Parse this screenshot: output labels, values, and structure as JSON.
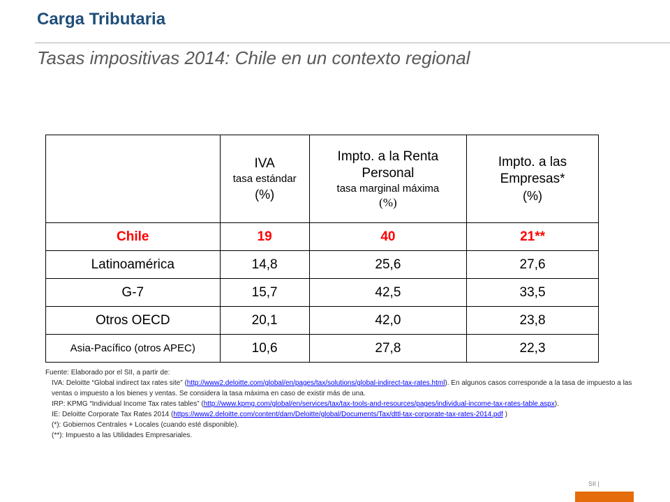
{
  "header": {
    "title": "Carga Tributaria",
    "subtitle": "Tasas impositivas 2014: Chile en un contexto regional"
  },
  "table": {
    "columns": [
      {
        "main": "IVA",
        "sub": "tasa estándar",
        "unit": "(%)"
      },
      {
        "main": "Impto. a la Renta Personal",
        "sub": "tasa marginal máxima",
        "unit": "(%)"
      },
      {
        "main": "Impto. a las Empresas*",
        "unit": "(%)"
      }
    ],
    "rows": [
      {
        "name": "Chile",
        "iva": "19",
        "renta": "40",
        "empresas": "21**"
      },
      {
        "name": "Latinoamérica",
        "iva": "14,8",
        "renta": "25,6",
        "empresas": "27,6"
      },
      {
        "name": "G-7",
        "iva": "15,7",
        "renta": "42,5",
        "empresas": "33,5"
      },
      {
        "name": "Otros OECD",
        "iva": "20,1",
        "renta": "42,0",
        "empresas": "23,8"
      },
      {
        "name": "Asia-Pacífico (otros APEC)",
        "iva": "10,6",
        "renta": "27,8",
        "empresas": "22,3"
      }
    ]
  },
  "notes": {
    "source": "Fuente: Elaborado por el SII, a partir de:",
    "iva_pre": "IVA: Deloitte “Global indirect tax rates site” (",
    "iva_link": "http://www2.deloitte.com/global/en/pages/tax/solutions/global-indirect-tax-rates.html",
    "iva_post": "). En algunos casos corresponde a la tasa de impuesto a las ventas o impuesto a los bienes y ventas. Se considera la tasa máxima en caso de existir más de una.",
    "irp_pre": "IRP: KPMG “Individual Income Tax rates tables” (",
    "irp_link": "http://www.kpmg.com/global/en/services/tax/tax-tools-and-resources/pages/individual-income-tax-rates-table.aspx",
    "irp_post": ").",
    "ie_pre": "IE: Deloitte Corporate Tax Rates 2014 (",
    "ie_link": "https://www2.deloitte.com/content/dam/Deloitte/global/Documents/Tax/dttl-tax-corporate-tax-rates-2014.pdf",
    "ie_post": " )",
    "note1": "(*): Gobiernos Centrales + Locales (cuando esté disponible).",
    "note2": "(**): Impuesto a las Utilidades Empresariales."
  },
  "footer": {
    "label": "SII |"
  },
  "colors": {
    "title": "#1f4e79",
    "highlight": "#ff0000",
    "accent_bar": "#e46c0a"
  }
}
